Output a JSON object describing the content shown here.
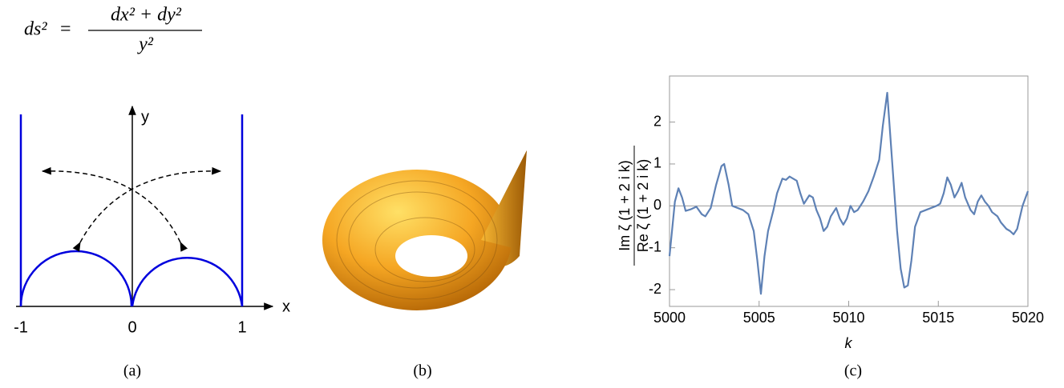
{
  "formula": {
    "lhs": "ds²",
    "equals": "=",
    "numerator": "dx² + dy²",
    "denominator": "y²"
  },
  "panel_a": {
    "x_axis_label": "x",
    "y_axis_label": "y",
    "tick_labels": [
      "-1",
      "0",
      "1"
    ]
  },
  "captions": [
    "(a)",
    "(b)",
    "(c)"
  ],
  "chart_data": {
    "type": "line",
    "xlabel": "k",
    "ylabel": {
      "numerator": "Im ζ (1 + 2 i k)",
      "denominator": "Re ζ (1 + 2 i k)"
    },
    "x": [
      5000,
      5000.3,
      5000.5,
      5000.7,
      5000.9,
      5001.2,
      5001.5,
      5001.8,
      5002.0,
      5002.3,
      5002.6,
      5002.9,
      5003.05,
      5003.3,
      5003.5,
      5003.8,
      5004.1,
      5004.4,
      5004.7,
      5004.9,
      5005.1,
      5005.3,
      5005.5,
      5005.8,
      5006.0,
      5006.3,
      5006.5,
      5006.7,
      5006.9,
      5007.1,
      5007.3,
      5007.5,
      5007.8,
      5008.0,
      5008.2,
      5008.4,
      5008.6,
      5008.8,
      5009.0,
      5009.3,
      5009.5,
      5009.7,
      5009.9,
      5010.1,
      5010.3,
      5010.5,
      5010.8,
      5011.1,
      5011.4,
      5011.7,
      5011.9,
      5012.15,
      5012.4,
      5012.7,
      5012.9,
      5013.1,
      5013.3,
      5013.5,
      5013.7,
      5014.0,
      5014.3,
      5014.6,
      5014.9,
      5015.1,
      5015.3,
      5015.5,
      5015.7,
      5015.9,
      5016.1,
      5016.3,
      5016.5,
      5016.8,
      5017.0,
      5017.2,
      5017.4,
      5017.6,
      5017.8,
      5018.0,
      5018.3,
      5018.5,
      5018.8,
      5019.0,
      5019.2,
      5019.4,
      5019.7,
      5020.0
    ],
    "series": [
      {
        "color": "#5e81b5",
        "values": [
          -1.2,
          0.1,
          0.42,
          0.2,
          -0.12,
          -0.08,
          -0.02,
          -0.2,
          -0.25,
          -0.05,
          0.5,
          0.95,
          1.0,
          0.5,
          0.0,
          -0.05,
          -0.1,
          -0.2,
          -0.6,
          -1.3,
          -2.1,
          -1.2,
          -0.6,
          -0.1,
          0.3,
          0.65,
          0.62,
          0.7,
          0.65,
          0.6,
          0.3,
          0.05,
          0.25,
          0.2,
          -0.1,
          -0.3,
          -0.6,
          -0.5,
          -0.25,
          -0.05,
          -0.3,
          -0.45,
          -0.3,
          0.0,
          -0.15,
          -0.1,
          0.1,
          0.35,
          0.7,
          1.1,
          1.9,
          2.7,
          1.2,
          -0.6,
          -1.5,
          -1.95,
          -1.9,
          -1.3,
          -0.5,
          -0.15,
          -0.1,
          -0.05,
          0.0,
          0.05,
          0.3,
          0.68,
          0.5,
          0.2,
          0.35,
          0.55,
          0.2,
          -0.1,
          -0.2,
          0.1,
          0.25,
          0.1,
          0.0,
          -0.15,
          -0.25,
          -0.4,
          -0.55,
          -0.6,
          -0.68,
          -0.55,
          0.0,
          0.35
        ]
      }
    ],
    "xlim": [
      5000,
      5020
    ],
    "ylim": [
      -2.4,
      3.1
    ],
    "xticks": [
      5000,
      5005,
      5010,
      5015,
      5020
    ],
    "yticks": [
      -2,
      -1,
      0,
      1,
      2
    ]
  }
}
